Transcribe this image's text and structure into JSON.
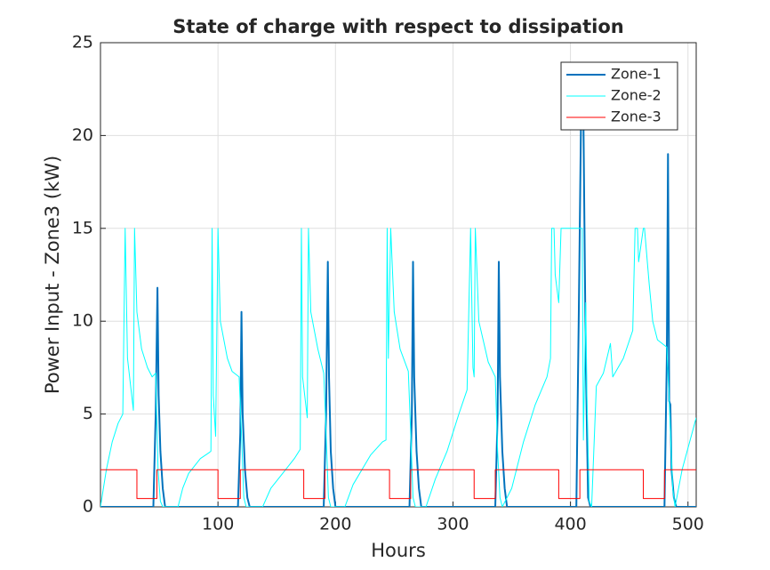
{
  "chart_data": {
    "type": "line",
    "title": "State of charge with respect to dissipation",
    "xlabel": "Hours",
    "ylabel": "Power Input - Zone3 (kW)",
    "xlim": [
      0,
      507
    ],
    "ylim": [
      0,
      25
    ],
    "xticks": [
      100,
      200,
      300,
      400,
      500
    ],
    "yticks": [
      0,
      5,
      10,
      15,
      20,
      25
    ],
    "grid": true,
    "legend": "northeast",
    "series": [
      {
        "name": "Zone-1",
        "color": "#0072BD",
        "width": 2,
        "x": [
          0,
          45,
          47,
          48.5,
          49.5,
          51,
          53,
          55,
          117,
          119,
          120,
          121,
          123,
          125,
          127,
          190,
          192,
          193.5,
          194.5,
          196,
          198,
          200,
          263,
          265,
          266,
          267,
          269,
          271,
          273,
          336,
          338,
          339,
          340,
          342,
          344,
          346,
          405,
          407,
          409,
          411,
          413,
          415,
          417,
          480,
          482,
          483,
          484,
          485,
          486,
          488,
          490,
          507
        ],
        "values": [
          0,
          0,
          5,
          11.8,
          6,
          3,
          1,
          0,
          0,
          4,
          10.5,
          5,
          2,
          0.5,
          0,
          0,
          5,
          13.2,
          7,
          3,
          1,
          0,
          0,
          5,
          13.2,
          7,
          3,
          1,
          0,
          0,
          5,
          13.2,
          7,
          3,
          1,
          0,
          0,
          10,
          21,
          21,
          8,
          0.5,
          0,
          0,
          8,
          19,
          5.7,
          5.5,
          2,
          0.5,
          0,
          0
        ]
      },
      {
        "name": "Zone-2",
        "color": "#00FFFF",
        "width": 1,
        "x": [
          0,
          5,
          10,
          15,
          19,
          21,
          23,
          28,
          29,
          31,
          35,
          40,
          44,
          47,
          49,
          51,
          53,
          66,
          70,
          75,
          85,
          92,
          94,
          95,
          96,
          98,
          100,
          102,
          108,
          112,
          118,
          120,
          122,
          124,
          138,
          145,
          155,
          165,
          170,
          171,
          172,
          176,
          177,
          179,
          185,
          190,
          192,
          194,
          196,
          208,
          215,
          230,
          240,
          243,
          244,
          245,
          247,
          250,
          255,
          262,
          264,
          266,
          268,
          277,
          285,
          295,
          305,
          312,
          315,
          317,
          318,
          319,
          322,
          330,
          336,
          338,
          340,
          342,
          350,
          360,
          370,
          380,
          383,
          384,
          386,
          387,
          390,
          392,
          410,
          411,
          413,
          414,
          416,
          418,
          422,
          428,
          434,
          436,
          445,
          453,
          455,
          457,
          458,
          462,
          463,
          467,
          470,
          474,
          480,
          482,
          484,
          487,
          489,
          495,
          507
        ],
        "values": [
          0,
          2,
          3.5,
          4.5,
          5,
          15,
          8,
          5.2,
          15,
          10.5,
          8.5,
          7.5,
          7,
          7.2,
          2,
          0.3,
          0,
          0,
          1,
          1.8,
          2.6,
          2.9,
          3,
          15,
          6,
          3.8,
          15,
          10,
          8,
          7.3,
          7,
          4,
          0.5,
          0,
          0,
          1,
          1.8,
          2.6,
          3.1,
          15,
          7,
          4.8,
          15,
          10.5,
          8.5,
          7.2,
          4,
          0.5,
          0,
          0,
          1.2,
          2.8,
          3.5,
          3.6,
          15,
          8,
          15,
          10.5,
          8.5,
          7.3,
          4,
          0.5,
          0,
          0,
          1.5,
          3,
          5,
          6.3,
          15,
          7.5,
          7,
          15,
          10,
          7.8,
          7,
          3,
          0.5,
          0,
          1,
          3.5,
          5.5,
          7,
          8,
          15,
          15,
          12.5,
          11,
          15,
          15,
          3.6,
          11,
          6,
          0.3,
          0,
          6.5,
          7.2,
          8.8,
          7,
          8,
          9.5,
          15,
          15,
          13.2,
          15,
          15,
          12,
          10,
          9,
          8.7,
          8.6,
          5.7,
          1,
          0,
          2,
          4.8
        ]
      },
      {
        "name": "Zone-3",
        "color": "#FF0000",
        "width": 1,
        "x": [
          0,
          31,
          31,
          48,
          48,
          100,
          100,
          119,
          119,
          173,
          173,
          191,
          191,
          246,
          246,
          264,
          264,
          318,
          318,
          336,
          336,
          390,
          390,
          408,
          408,
          462,
          462,
          480,
          480,
          507
        ],
        "values": [
          2,
          2,
          0.45,
          0.45,
          2,
          2,
          0.45,
          0.45,
          2,
          2,
          0.45,
          0.45,
          2,
          2,
          0.45,
          0.45,
          2,
          2,
          0.45,
          0.45,
          2,
          2,
          0.45,
          0.45,
          2,
          2,
          0.45,
          0.45,
          2,
          2
        ]
      }
    ]
  }
}
